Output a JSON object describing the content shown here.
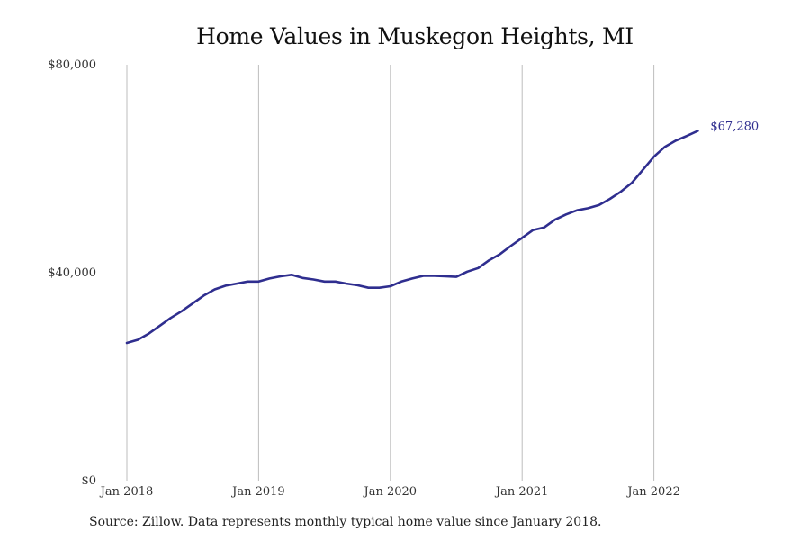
{
  "chart_data": {
    "type": "line",
    "title": "Home Values in Muskegon Heights, MI",
    "xlabel": "",
    "ylabel": "",
    "x_ticks": [
      "Jan 2018",
      "Jan 2019",
      "Jan 2020",
      "Jan 2021",
      "Jan 2022"
    ],
    "y_ticks": [
      "$0",
      "$40,000",
      "$80,000"
    ],
    "ylim": [
      0,
      80000
    ],
    "xlim": [
      "2018-01",
      "2022-05"
    ],
    "grid": "vertical lines at January of each year",
    "color": "#2f2e8f",
    "end_label": "$67,280",
    "series": [
      {
        "x": [
          "2018-01",
          "2018-02",
          "2018-03",
          "2018-04",
          "2018-05",
          "2018-06",
          "2018-07",
          "2018-08",
          "2018-09",
          "2018-10",
          "2018-11",
          "2018-12",
          "2019-01",
          "2019-02",
          "2019-03",
          "2019-04",
          "2019-05",
          "2019-06",
          "2019-07",
          "2019-08",
          "2019-09",
          "2019-10",
          "2019-11",
          "2019-12",
          "2020-01",
          "2020-02",
          "2020-03",
          "2020-04",
          "2020-05",
          "2020-06",
          "2020-07",
          "2020-08",
          "2020-09",
          "2020-10",
          "2020-11",
          "2020-12",
          "2021-01",
          "2021-02",
          "2021-03",
          "2021-04",
          "2021-05",
          "2021-06",
          "2021-07",
          "2021-08",
          "2021-09",
          "2021-10",
          "2021-11",
          "2021-12",
          "2022-01",
          "2022-02",
          "2022-03",
          "2022-04",
          "2022-05"
        ],
        "values": [
          26500,
          27100,
          28300,
          29800,
          31300,
          32600,
          34100,
          35600,
          36800,
          37500,
          37900,
          38300,
          38300,
          38900,
          39300,
          39600,
          39000,
          38700,
          38300,
          38300,
          37900,
          37600,
          37100,
          37100,
          37400,
          38300,
          38900,
          39400,
          39400,
          39300,
          39200,
          40200,
          40900,
          42400,
          43600,
          45200,
          46700,
          48200,
          48700,
          50200,
          51200,
          52000,
          52400,
          53000,
          54200,
          55600,
          57300,
          59800,
          62300,
          64200,
          65400,
          66300,
          67280
        ]
      }
    ]
  },
  "source_note": "Source: Zillow. Data represents monthly typical home value since January 2018."
}
